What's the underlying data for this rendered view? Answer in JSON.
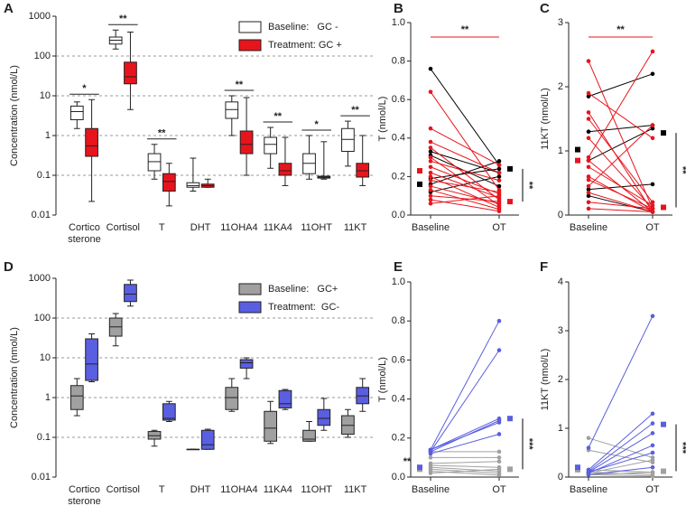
{
  "chart_data": [
    {
      "type": "box",
      "panel": "A",
      "y_label": "Concentration (nmol/L)",
      "log_scale": true,
      "grid": true,
      "legend": "upper right",
      "ylim": [
        0.01,
        1000
      ],
      "yticks": [
        0.01,
        0.1,
        1,
        10,
        100,
        1000
      ],
      "categories": [
        [
          "Cortico",
          "sterone"
        ],
        "Cortisol",
        "T",
        "DHT",
        "11OHA4",
        "11KA4",
        "11OHT",
        "11KT"
      ],
      "significance": [
        "*",
        "**",
        "**",
        null,
        "**",
        "**",
        "*",
        "**"
      ],
      "series": [
        {
          "name": "Baseline:   GC -",
          "color": "#ffffff",
          "values": [
            {
              "whisker_low": 1.5,
              "q1": 2.5,
              "median": 4,
              "q3": 5.5,
              "whisker_high": 7
            },
            {
              "whisker_low": 150,
              "q1": 200,
              "median": 250,
              "q3": 300,
              "whisker_high": 450
            },
            {
              "whisker_low": 0.08,
              "q1": 0.13,
              "median": 0.22,
              "q3": 0.35,
              "whisker_high": 0.6
            },
            {
              "whisker_low": 0.04,
              "q1": 0.05,
              "median": 0.055,
              "q3": 0.065,
              "whisker_high": 0.27
            },
            {
              "whisker_low": 1,
              "q1": 2.7,
              "median": 4.5,
              "q3": 7,
              "whisker_high": 10
            },
            {
              "whisker_low": 0.15,
              "q1": 0.35,
              "median": 0.6,
              "q3": 0.9,
              "whisker_high": 1.6
            },
            {
              "whisker_low": 0.08,
              "q1": 0.11,
              "median": 0.2,
              "q3": 0.35,
              "whisker_high": 1
            },
            {
              "whisker_low": 0.17,
              "q1": 0.4,
              "median": 0.8,
              "q3": 1.5,
              "whisker_high": 2.3
            }
          ]
        },
        {
          "name": "Treatment: GC +",
          "color": "#e8141c",
          "values": [
            {
              "whisker_low": 0.022,
              "q1": 0.3,
              "median": 0.55,
              "q3": 1.5,
              "whisker_high": 8
            },
            {
              "whisker_low": 4.5,
              "q1": 20,
              "median": 30,
              "q3": 70,
              "whisker_high": 400
            },
            {
              "whisker_low": 0.017,
              "q1": 0.04,
              "median": 0.07,
              "q3": 0.11,
              "whisker_high": 0.2
            },
            {
              "whisker_low": 0.05,
              "q1": 0.05,
              "median": 0.055,
              "q3": 0.06,
              "whisker_high": 0.08
            },
            {
              "whisker_low": 0.1,
              "q1": 0.35,
              "median": 0.6,
              "q3": 1.3,
              "whisker_high": 9
            },
            {
              "whisker_low": 0.055,
              "q1": 0.1,
              "median": 0.13,
              "q3": 0.2,
              "whisker_high": 0.9
            },
            {
              "whisker_low": 0.08,
              "q1": 0.085,
              "median": 0.09,
              "q3": 0.095,
              "whisker_high": 0.7
            },
            {
              "whisker_low": 0.055,
              "q1": 0.09,
              "median": 0.13,
              "q3": 0.2,
              "whisker_high": 1
            }
          ]
        }
      ]
    },
    {
      "type": "paired",
      "panel": "B",
      "y_label": "T (nmol/L)",
      "categories": [
        "Baseline",
        "OT"
      ],
      "ylim": [
        0,
        1
      ],
      "yticks": [
        {
          "value": 0,
          "label": "0.0"
        },
        0.2,
        0.4,
        0.6,
        0.8,
        {
          "value": 1,
          "label": "1.0"
        }
      ],
      "groups": [
        {
          "color": "#000000",
          "lines": [
            [
              0.76,
              0.26
            ],
            [
              0.33,
              0.22
            ],
            [
              0.31,
              0.15
            ],
            [
              0.19,
              0.24
            ],
            [
              0.16,
              0.28
            ],
            [
              0.12,
              0.2
            ]
          ],
          "means": [
            0.16,
            0.24
          ]
        },
        {
          "color": "#e8141c",
          "lines": [
            [
              0.64,
              0.13
            ],
            [
              0.45,
              0.26
            ],
            [
              0.38,
              0.22
            ],
            [
              0.35,
              0.08
            ],
            [
              0.3,
              0.05
            ],
            [
              0.28,
              0.18
            ],
            [
              0.25,
              0.11
            ],
            [
              0.22,
              0.09
            ],
            [
              0.2,
              0.04
            ],
            [
              0.18,
              0.12
            ],
            [
              0.15,
              0.06
            ],
            [
              0.13,
              0.03
            ],
            [
              0.1,
              0.07
            ],
            [
              0.08,
              0.02
            ],
            [
              0.06,
              0.1
            ]
          ],
          "means": [
            0.23,
            0.07
          ]
        }
      ],
      "annotations": [
        {
          "text": "**",
          "position": "top",
          "color": "#e8141c"
        },
        {
          "text": "**",
          "position": "right",
          "color": "#000000"
        }
      ]
    },
    {
      "type": "paired",
      "panel": "C",
      "y_label": "11KT (nmol/L)",
      "categories": [
        "Baseline",
        "OT"
      ],
      "ylim": [
        0,
        3
      ],
      "yticks": [
        0,
        1,
        2,
        3
      ],
      "groups": [
        {
          "color": "#000000",
          "lines": [
            [
              1.85,
              2.2
            ],
            [
              1.3,
              1.4
            ],
            [
              0.85,
              1.35
            ],
            [
              0.4,
              0.48
            ],
            [
              0.3,
              0.05
            ]
          ],
          "means": [
            1.02,
            1.28
          ]
        },
        {
          "color": "#e8141c",
          "lines": [
            [
              2.4,
              0.1
            ],
            [
              1.9,
              1.2
            ],
            [
              1.6,
              0.05
            ],
            [
              1.5,
              0.2
            ],
            [
              1.2,
              0.1
            ],
            [
              0.9,
              2.55
            ],
            [
              0.85,
              0.05
            ],
            [
              0.75,
              0.15
            ],
            [
              0.6,
              0.05
            ],
            [
              0.55,
              0.1
            ],
            [
              0.45,
              1.4
            ],
            [
              0.35,
              0.05
            ],
            [
              0.2,
              0.1
            ],
            [
              0.1,
              0.05
            ]
          ],
          "means": [
            0.85,
            0.12
          ]
        }
      ],
      "annotations": [
        {
          "text": "**",
          "position": "top",
          "color": "#e8141c"
        },
        {
          "text": "**",
          "position": "right",
          "color": "#000000"
        }
      ]
    },
    {
      "type": "box",
      "panel": "D",
      "y_label": "Concentration (nmol/L)",
      "log_scale": true,
      "grid": true,
      "legend": "upper right",
      "ylim": [
        0.01,
        1000
      ],
      "yticks": [
        0.01,
        0.1,
        1,
        10,
        100,
        1000
      ],
      "categories": [
        [
          "Cortico",
          "sterone"
        ],
        "Cortisol",
        "T",
        "DHT",
        "11OHA4",
        "11KA4",
        "11OHT",
        "11KT"
      ],
      "series": [
        {
          "name": "Baseline:   GC+",
          "color": "#a0a0a0",
          "values": [
            {
              "whisker_low": 0.35,
              "q1": 0.5,
              "median": 1.1,
              "q3": 2,
              "whisker_high": 3
            },
            {
              "whisker_low": 20,
              "q1": 35,
              "median": 60,
              "q3": 100,
              "whisker_high": 130
            },
            {
              "whisker_low": 0.06,
              "q1": 0.09,
              "median": 0.11,
              "q3": 0.14,
              "whisker_high": 0.15
            },
            {
              "whisker_low": 0.05,
              "q1": 0.05,
              "median": 0.05,
              "q3": 0.05,
              "whisker_high": 0.05
            },
            {
              "whisker_low": 0.45,
              "q1": 0.5,
              "median": 1,
              "q3": 1.8,
              "whisker_high": 3
            },
            {
              "whisker_low": 0.07,
              "q1": 0.08,
              "median": 0.17,
              "q3": 0.45,
              "whisker_high": 0.8
            },
            {
              "whisker_low": 0.08,
              "q1": 0.08,
              "median": 0.09,
              "q3": 0.15,
              "whisker_high": 0.25
            },
            {
              "whisker_low": 0.1,
              "q1": 0.12,
              "median": 0.2,
              "q3": 0.35,
              "whisker_high": 0.5
            }
          ]
        },
        {
          "name": "Treatment:  GC-",
          "color": "#5a5ee0",
          "values": [
            {
              "whisker_low": 2.5,
              "q1": 2.7,
              "median": 7,
              "q3": 30,
              "whisker_high": 40
            },
            {
              "whisker_low": 200,
              "q1": 260,
              "median": 400,
              "q3": 700,
              "whisker_high": 900
            },
            {
              "whisker_low": 0.25,
              "q1": 0.27,
              "median": 0.3,
              "q3": 0.7,
              "whisker_high": 0.8
            },
            {
              "whisker_low": 0.05,
              "q1": 0.05,
              "median": 0.065,
              "q3": 0.15,
              "whisker_high": 0.16
            },
            {
              "whisker_low": 3,
              "q1": 5.5,
              "median": 7.5,
              "q3": 9,
              "whisker_high": 10
            },
            {
              "whisker_low": 0.5,
              "q1": 0.55,
              "median": 0.7,
              "q3": 1.5,
              "whisker_high": 1.6
            },
            {
              "whisker_low": 0.15,
              "q1": 0.2,
              "median": 0.3,
              "q3": 0.5,
              "whisker_high": 0.95
            },
            {
              "whisker_low": 0.45,
              "q1": 0.7,
              "median": 1.1,
              "q3": 1.8,
              "whisker_high": 3
            }
          ]
        }
      ]
    },
    {
      "type": "paired",
      "panel": "E",
      "y_label": "T (nmol/L)",
      "categories": [
        "Baseline",
        "OT"
      ],
      "ylim": [
        0,
        1
      ],
      "yticks": [
        {
          "value": 0,
          "label": "0.0"
        },
        0.2,
        0.4,
        0.6,
        0.8,
        {
          "value": 1,
          "label": "1.0"
        }
      ],
      "groups": [
        {
          "color": "#a0a0a0",
          "lines": [
            [
              0.13,
              0.13
            ],
            [
              0.1,
              0.1
            ],
            [
              0.07,
              0.08
            ],
            [
              0.06,
              0.05
            ],
            [
              0.05,
              0.03
            ],
            [
              0.04,
              0.02
            ],
            [
              0.03,
              0.01
            ],
            [
              0.02,
              0.04
            ]
          ],
          "means": [
            0.04,
            0.04
          ]
        },
        {
          "color": "#5a5ee0",
          "lines": [
            [
              0.14,
              0.8
            ],
            [
              0.13,
              0.65
            ],
            [
              0.14,
              0.3
            ],
            [
              0.13,
              0.29
            ],
            [
              0.12,
              0.22
            ],
            [
              0.14,
              0.28
            ]
          ],
          "means": [
            0.05,
            0.3
          ]
        }
      ],
      "annotations": [
        {
          "text": "**",
          "position": "left",
          "color": "#000000"
        },
        {
          "text": "***",
          "position": "right",
          "color": "#000000"
        }
      ]
    },
    {
      "type": "paired",
      "panel": "F",
      "y_label": "11KT (nmol/L)",
      "categories": [
        "Baseline",
        "OT"
      ],
      "ylim": [
        0,
        4
      ],
      "yticks": [
        0,
        1,
        2,
        3,
        4
      ],
      "groups": [
        {
          "color": "#a0a0a0",
          "lines": [
            [
              0.8,
              0.4
            ],
            [
              0.55,
              0.3
            ],
            [
              0.15,
              0.1
            ],
            [
              0.1,
              0.05
            ],
            [
              0.08,
              0.35
            ],
            [
              0.05,
              0.02
            ],
            [
              0.05,
              0.1
            ]
          ],
          "means": [
            0.15,
            0.12
          ]
        },
        {
          "color": "#5a5ee0",
          "lines": [
            [
              0.6,
              3.3
            ],
            [
              0.15,
              1.3
            ],
            [
              0.12,
              1.1
            ],
            [
              0.1,
              0.9
            ],
            [
              0.08,
              0.65
            ],
            [
              0.1,
              0.5
            ],
            [
              0.05,
              0.2
            ]
          ],
          "means": [
            0.2,
            1.08
          ]
        }
      ],
      "annotations": [
        {
          "text": "***",
          "position": "right",
          "color": "#000000"
        }
      ]
    }
  ]
}
